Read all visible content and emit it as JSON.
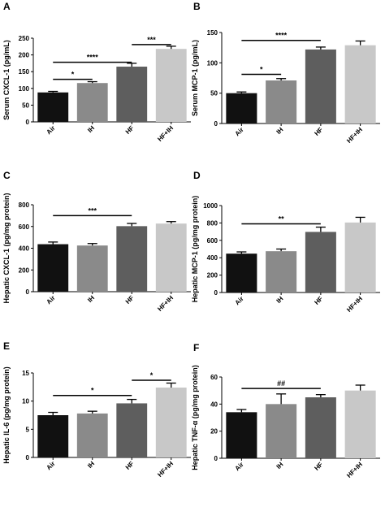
{
  "chart_data": [
    {
      "letter": "A",
      "type": "bar",
      "categories": [
        "Air",
        "IH",
        "HF",
        "HF+IH"
      ],
      "values": [
        88,
        116,
        165,
        218
      ],
      "errors": [
        3,
        4,
        10,
        8
      ],
      "ylabel": "Serum CXCL-1 (pg/mL)",
      "ylim": [
        0,
        250
      ],
      "yticks": [
        0,
        50,
        100,
        150,
        200,
        250
      ],
      "colors": [
        "#111111",
        "#8a8a8a",
        "#5e5e5e",
        "#c8c8c8"
      ],
      "significance": [
        {
          "from": 0,
          "to": 1,
          "y": 127,
          "label": "*"
        },
        {
          "from": 0,
          "to": 2,
          "y": 178,
          "label": "****"
        },
        {
          "from": 2,
          "to": 3,
          "y": 231,
          "label": "***"
        }
      ]
    },
    {
      "letter": "B",
      "type": "bar",
      "categories": [
        "Air",
        "IH",
        "HF",
        "HF+IH"
      ],
      "values": [
        50,
        71,
        122,
        129
      ],
      "errors": [
        2,
        3,
        4,
        7
      ],
      "ylabel": "Serum MCP-1 (pg/mL)",
      "ylim": [
        0,
        150
      ],
      "yticks": [
        0,
        50,
        100,
        150
      ],
      "colors": [
        "#111111",
        "#8a8a8a",
        "#5e5e5e",
        "#c8c8c8"
      ],
      "significance": [
        {
          "from": 0,
          "to": 1,
          "y": 81,
          "label": "*"
        },
        {
          "from": 0,
          "to": 2,
          "y": 137,
          "label": "****"
        }
      ]
    },
    {
      "letter": "C",
      "type": "bar",
      "categories": [
        "Air",
        "IH",
        "HF",
        "HF+IH"
      ],
      "values": [
        437,
        425,
        603,
        627
      ],
      "errors": [
        20,
        18,
        25,
        18
      ],
      "ylabel": "Hepatic CXCL-1 (pg/mg protein)",
      "ylim": [
        0,
        800
      ],
      "yticks": [
        0,
        200,
        400,
        600,
        800
      ],
      "colors": [
        "#111111",
        "#8a8a8a",
        "#5e5e5e",
        "#c8c8c8"
      ],
      "significance": [
        {
          "from": 0,
          "to": 2,
          "y": 700,
          "label": "***"
        }
      ]
    },
    {
      "letter": "D",
      "type": "bar",
      "categories": [
        "Air",
        "IH",
        "HF",
        "HF+IH"
      ],
      "values": [
        447,
        475,
        697,
        805
      ],
      "errors": [
        20,
        25,
        55,
        60
      ],
      "ylabel": "Hepatic MCP-1 (pg/mg protein)",
      "ylim": [
        0,
        1000
      ],
      "yticks": [
        0,
        200,
        400,
        600,
        800,
        1000
      ],
      "colors": [
        "#111111",
        "#8a8a8a",
        "#5e5e5e",
        "#c8c8c8"
      ],
      "significance": [
        {
          "from": 0,
          "to": 2,
          "y": 790,
          "label": "**"
        }
      ]
    },
    {
      "letter": "E",
      "type": "bar",
      "categories": [
        "Air",
        "IH",
        "HF",
        "HF+IH"
      ],
      "values": [
        7.5,
        7.8,
        9.6,
        12.4
      ],
      "errors": [
        0.5,
        0.4,
        0.7,
        0.8
      ],
      "ylabel": "Hepatic IL-6 (pg/mg protein)",
      "ylim": [
        0,
        15
      ],
      "yticks": [
        0,
        5,
        10,
        15
      ],
      "colors": [
        "#111111",
        "#8a8a8a",
        "#5e5e5e",
        "#c8c8c8"
      ],
      "significance": [
        {
          "from": 0,
          "to": 2,
          "y": 11.0,
          "label": "*"
        },
        {
          "from": 2,
          "to": 3,
          "y": 13.7,
          "label": "*"
        }
      ]
    },
    {
      "letter": "F",
      "type": "bar",
      "categories": [
        "Air",
        "IH",
        "HF",
        "HF+IH"
      ],
      "values": [
        34,
        40,
        45,
        50
      ],
      "errors": [
        2,
        7.5,
        2,
        4
      ],
      "ylabel": "Hepatic TNF-α (pg/mg protein)",
      "ylim": [
        0,
        60
      ],
      "yticks": [
        0,
        20,
        40,
        60
      ],
      "colors": [
        "#111111",
        "#8a8a8a",
        "#5e5e5e",
        "#c8c8c8"
      ],
      "significance": [
        {
          "from": 0,
          "to": 2,
          "y": 51.5,
          "label": "##"
        }
      ]
    }
  ]
}
